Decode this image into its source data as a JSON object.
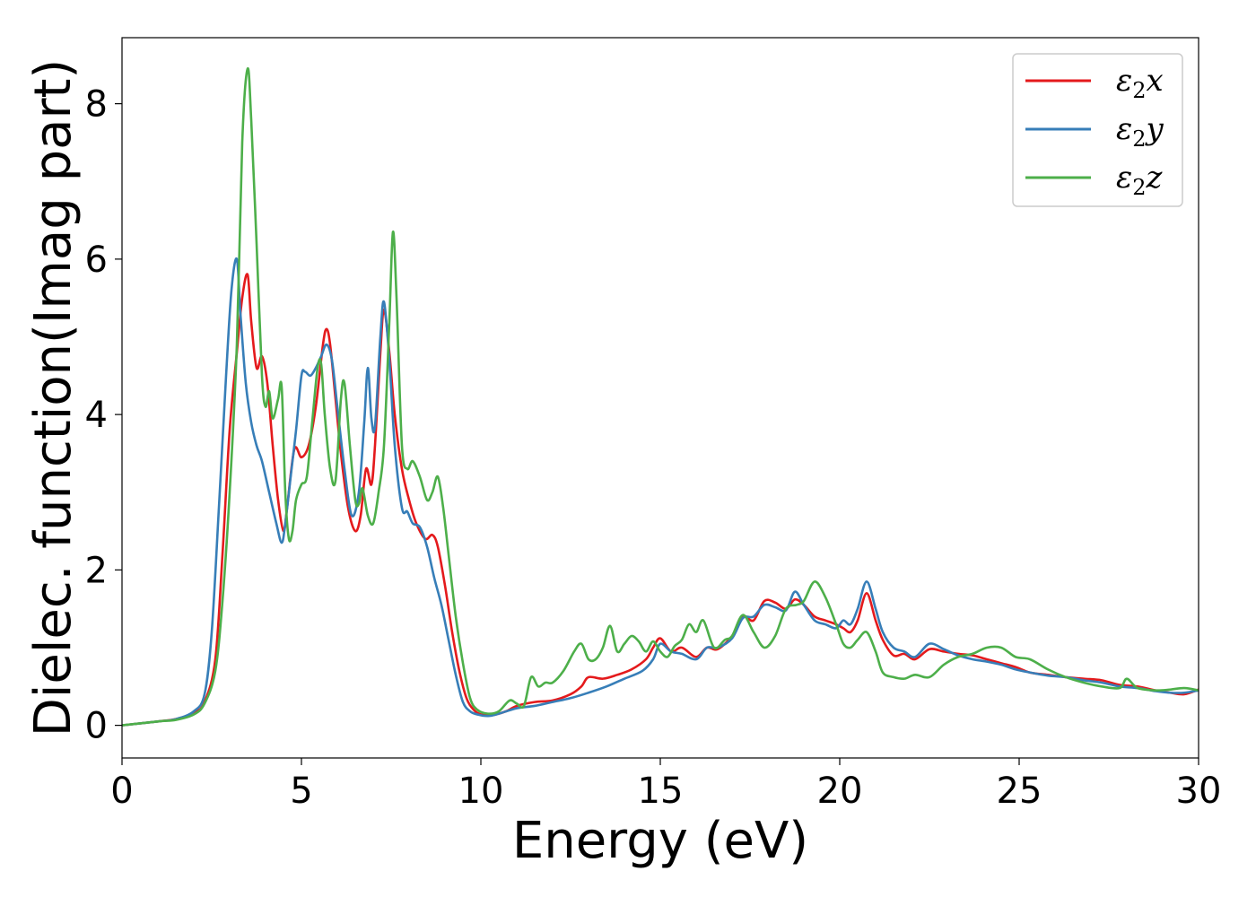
{
  "chart_data": {
    "type": "line",
    "xlabel": "Energy (eV)",
    "ylabel": "Dielec. function(Imag part)",
    "xlim": [
      0,
      30
    ],
    "ylim": [
      -0.42,
      8.85
    ],
    "xticks": [
      0,
      5,
      10,
      15,
      20,
      25,
      30
    ],
    "yticks": [
      0,
      2,
      4,
      6,
      8
    ],
    "grid": false,
    "legend_position": "top-right",
    "series": [
      {
        "name": "ε2x",
        "base": "ε",
        "sub": "2",
        "suffix": "x",
        "color": "#e41a1c",
        "x": [
          0,
          1,
          1.5,
          2,
          2.3,
          2.6,
          2.8,
          3.0,
          3.2,
          3.35,
          3.5,
          3.6,
          3.75,
          3.9,
          4.05,
          4.2,
          4.35,
          4.5,
          4.6,
          4.8,
          5.0,
          5.2,
          5.4,
          5.6,
          5.7,
          5.8,
          5.95,
          6.1,
          6.3,
          6.5,
          6.65,
          6.8,
          6.95,
          7.05,
          7.2,
          7.3,
          7.45,
          7.6,
          7.8,
          8.0,
          8.2,
          8.45,
          8.65,
          8.8,
          9.0,
          9.2,
          9.4,
          9.6,
          9.8,
          10.0,
          10.3,
          10.7,
          11.0,
          11.5,
          12.0,
          12.5,
          12.8,
          13.0,
          13.4,
          13.8,
          14.2,
          14.6,
          14.8,
          15.0,
          15.3,
          15.6,
          16.0,
          16.3,
          16.6,
          17.0,
          17.3,
          17.6,
          17.9,
          18.2,
          18.5,
          18.75,
          19.0,
          19.3,
          19.6,
          19.9,
          20.1,
          20.3,
          20.5,
          20.75,
          21.0,
          21.2,
          21.5,
          21.8,
          22.1,
          22.5,
          22.9,
          23.3,
          23.7,
          24.1,
          24.5,
          24.9,
          25.3,
          25.8,
          26.3,
          26.8,
          27.3,
          27.8,
          28.3,
          28.8,
          29.2,
          29.6,
          30.0
        ],
        "y": [
          0,
          0.05,
          0.08,
          0.16,
          0.3,
          0.85,
          2.2,
          3.8,
          4.8,
          5.5,
          5.8,
          5.2,
          4.6,
          4.75,
          4.4,
          3.6,
          2.9,
          2.5,
          2.8,
          3.55,
          3.45,
          3.6,
          4.1,
          4.9,
          5.1,
          4.9,
          4.2,
          3.5,
          2.8,
          2.5,
          2.7,
          3.3,
          3.1,
          3.6,
          4.8,
          5.35,
          4.8,
          4.0,
          3.3,
          2.9,
          2.6,
          2.4,
          2.45,
          2.3,
          1.8,
          1.2,
          0.7,
          0.35,
          0.2,
          0.14,
          0.13,
          0.18,
          0.25,
          0.3,
          0.32,
          0.4,
          0.5,
          0.62,
          0.6,
          0.65,
          0.72,
          0.85,
          1.0,
          1.12,
          0.95,
          1.0,
          0.88,
          1.0,
          0.98,
          1.15,
          1.4,
          1.35,
          1.6,
          1.58,
          1.5,
          1.62,
          1.55,
          1.4,
          1.35,
          1.3,
          1.25,
          1.2,
          1.35,
          1.7,
          1.35,
          1.1,
          0.9,
          0.92,
          0.85,
          0.98,
          0.95,
          0.92,
          0.9,
          0.85,
          0.8,
          0.75,
          0.68,
          0.65,
          0.62,
          0.6,
          0.58,
          0.52,
          0.5,
          0.45,
          0.42,
          0.4,
          0.46
        ]
      },
      {
        "name": "ε2y",
        "base": "ε",
        "sub": "2",
        "suffix": "y",
        "color": "#377eb8",
        "x": [
          0,
          1,
          1.5,
          2,
          2.3,
          2.5,
          2.7,
          2.9,
          3.05,
          3.2,
          3.3,
          3.45,
          3.6,
          3.75,
          3.9,
          4.1,
          4.3,
          4.45,
          4.55,
          4.7,
          4.85,
          5.0,
          5.1,
          5.25,
          5.4,
          5.55,
          5.7,
          5.85,
          6.0,
          6.2,
          6.4,
          6.6,
          6.75,
          6.85,
          6.95,
          7.05,
          7.2,
          7.3,
          7.45,
          7.6,
          7.8,
          7.95,
          8.1,
          8.3,
          8.5,
          8.7,
          8.9,
          9.1,
          9.3,
          9.5,
          9.7,
          9.9,
          10.2,
          10.5,
          11.0,
          11.5,
          12.0,
          12.5,
          13.0,
          13.5,
          14.0,
          14.5,
          14.8,
          15.0,
          15.3,
          15.6,
          16.0,
          16.3,
          16.6,
          17.0,
          17.3,
          17.6,
          17.9,
          18.2,
          18.5,
          18.75,
          19.0,
          19.3,
          19.6,
          19.9,
          20.1,
          20.3,
          20.5,
          20.75,
          21.0,
          21.2,
          21.5,
          21.8,
          22.1,
          22.5,
          22.9,
          23.3,
          23.7,
          24.1,
          24.5,
          24.9,
          25.3,
          25.8,
          26.3,
          26.8,
          27.3,
          27.8,
          28.3,
          28.8,
          29.2,
          29.6,
          30.0
        ],
        "y": [
          0,
          0.05,
          0.08,
          0.18,
          0.4,
          1.2,
          2.8,
          4.5,
          5.6,
          6.0,
          5.3,
          4.4,
          3.9,
          3.6,
          3.4,
          3.0,
          2.6,
          2.35,
          2.6,
          3.2,
          3.8,
          4.5,
          4.55,
          4.5,
          4.6,
          4.75,
          4.9,
          4.7,
          4.1,
          3.3,
          2.7,
          3.0,
          3.9,
          4.6,
          3.95,
          3.85,
          5.0,
          5.45,
          4.7,
          3.6,
          2.8,
          2.75,
          2.6,
          2.55,
          2.3,
          1.9,
          1.55,
          1.1,
          0.65,
          0.3,
          0.18,
          0.14,
          0.12,
          0.15,
          0.22,
          0.25,
          0.3,
          0.35,
          0.42,
          0.5,
          0.6,
          0.7,
          0.85,
          1.05,
          0.95,
          0.92,
          0.85,
          1.0,
          1.0,
          1.12,
          1.38,
          1.4,
          1.55,
          1.52,
          1.48,
          1.72,
          1.55,
          1.35,
          1.3,
          1.25,
          1.35,
          1.3,
          1.5,
          1.85,
          1.5,
          1.2,
          1.0,
          0.95,
          0.88,
          1.05,
          0.98,
          0.9,
          0.85,
          0.82,
          0.78,
          0.72,
          0.68,
          0.64,
          0.62,
          0.58,
          0.55,
          0.5,
          0.48,
          0.44,
          0.42,
          0.42,
          0.45
        ]
      },
      {
        "name": "ε2z",
        "base": "ε",
        "sub": "2",
        "suffix": "z",
        "color": "#4daf4a",
        "x": [
          0,
          1,
          1.5,
          2,
          2.3,
          2.6,
          2.8,
          3.0,
          3.2,
          3.35,
          3.5,
          3.6,
          3.75,
          3.9,
          4.0,
          4.1,
          4.2,
          4.35,
          4.45,
          4.55,
          4.65,
          4.75,
          4.85,
          5.0,
          5.15,
          5.3,
          5.45,
          5.55,
          5.65,
          5.8,
          5.95,
          6.1,
          6.2,
          6.35,
          6.5,
          6.6,
          6.7,
          6.85,
          7.0,
          7.15,
          7.3,
          7.45,
          7.55,
          7.65,
          7.8,
          7.95,
          8.1,
          8.3,
          8.5,
          8.65,
          8.8,
          8.95,
          9.1,
          9.3,
          9.5,
          9.7,
          9.9,
          10.2,
          10.5,
          10.8,
          11.0,
          11.2,
          11.4,
          11.6,
          11.8,
          12.0,
          12.3,
          12.6,
          12.8,
          13.0,
          13.2,
          13.4,
          13.6,
          13.8,
          14.0,
          14.2,
          14.4,
          14.6,
          14.8,
          15.0,
          15.2,
          15.4,
          15.6,
          15.8,
          16.0,
          16.2,
          16.5,
          16.8,
          17.0,
          17.3,
          17.6,
          17.9,
          18.2,
          18.5,
          18.8,
          19.0,
          19.3,
          19.6,
          19.9,
          20.1,
          20.3,
          20.5,
          20.75,
          21.0,
          21.2,
          21.5,
          21.8,
          22.1,
          22.5,
          22.9,
          23.3,
          23.7,
          24.1,
          24.5,
          24.9,
          25.3,
          25.8,
          26.3,
          26.8,
          27.3,
          27.8,
          28.0,
          28.3,
          28.8,
          29.2,
          29.6,
          30.0
        ],
        "y": [
          0,
          0.05,
          0.07,
          0.14,
          0.28,
          0.7,
          1.6,
          3.0,
          4.9,
          7.5,
          8.45,
          7.8,
          6.2,
          4.5,
          4.1,
          4.3,
          3.95,
          4.2,
          4.35,
          3.0,
          2.4,
          2.5,
          2.9,
          3.1,
          3.2,
          3.9,
          4.6,
          4.65,
          4.0,
          3.3,
          3.15,
          4.2,
          4.4,
          3.6,
          2.9,
          2.85,
          3.05,
          2.7,
          2.6,
          3.0,
          3.6,
          5.2,
          6.35,
          5.5,
          3.6,
          3.3,
          3.4,
          3.2,
          2.9,
          3.0,
          3.2,
          2.8,
          2.2,
          1.4,
          0.8,
          0.35,
          0.2,
          0.15,
          0.18,
          0.32,
          0.28,
          0.25,
          0.62,
          0.5,
          0.55,
          0.55,
          0.7,
          0.95,
          1.05,
          0.85,
          0.85,
          1.0,
          1.28,
          0.95,
          1.05,
          1.15,
          1.08,
          0.95,
          1.08,
          0.95,
          0.88,
          1.02,
          1.1,
          1.3,
          1.2,
          1.35,
          1.0,
          1.1,
          1.15,
          1.42,
          1.2,
          1.0,
          1.15,
          1.5,
          1.55,
          1.6,
          1.85,
          1.65,
          1.3,
          1.05,
          1.0,
          1.1,
          1.2,
          0.95,
          0.68,
          0.62,
          0.6,
          0.65,
          0.62,
          0.78,
          0.88,
          0.92,
          1.0,
          1.0,
          0.88,
          0.85,
          0.72,
          0.62,
          0.55,
          0.5,
          0.48,
          0.6,
          0.48,
          0.45,
          0.46,
          0.48,
          0.45
        ]
      }
    ]
  }
}
